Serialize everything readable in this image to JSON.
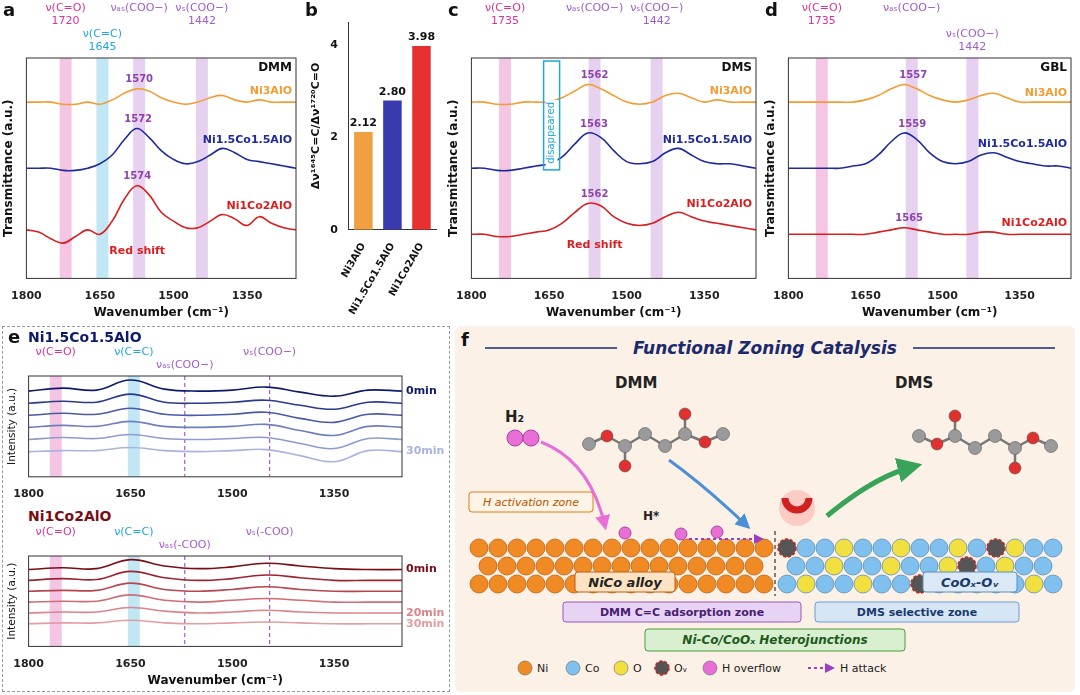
{
  "chart_data": [
    {
      "type": "line",
      "panel": "a",
      "title": "DMM",
      "x_label": "Wavenumber (cm⁻¹)",
      "y_label": "Transmittance (a.u.)",
      "x": [
        1800,
        1775,
        1750,
        1725,
        1700,
        1675,
        1650,
        1625,
        1600,
        1575,
        1550,
        1525,
        1500,
        1475,
        1450,
        1425,
        1400,
        1375,
        1350,
        1325,
        1300,
        1275,
        1250
      ],
      "xlim": [
        1800,
        1250
      ],
      "xticks": [
        1800,
        1650,
        1500,
        1350
      ],
      "ylim": [
        0,
        10
      ],
      "tick_labels": "x",
      "grid": false,
      "bands": [
        {
          "label": "ν(C=O)",
          "x": 1720,
          "x_label": "1720",
          "color": "#d6339b"
        },
        {
          "label": "ν(C=C)",
          "x": 1645,
          "x_label": "1645",
          "color": "#1fa8d8"
        },
        {
          "label": "νₐₛ(COO−)",
          "x": 1570,
          "color": "#a45cc9"
        },
        {
          "label": "νₛ(COO−)",
          "x": 1442,
          "x_label": "1442",
          "color": "#a45cc9"
        }
      ],
      "note": "Red shift",
      "series": [
        {
          "name": "Ni3AlO",
          "color": "#f39c34",
          "peak": 1570,
          "values": [
            8.0,
            8.0,
            8.0,
            7.9,
            7.9,
            8.0,
            7.9,
            8.1,
            8.4,
            8.6,
            8.5,
            8.2,
            8.0,
            7.9,
            8.0,
            8.2,
            8.3,
            8.1,
            8.0,
            8.1,
            8.0,
            8.0,
            8.0
          ]
        },
        {
          "name": "Ni1.5Co1.5AlO",
          "color": "#1f2a9c",
          "peak": 1572,
          "values": [
            5.0,
            5.0,
            5.0,
            4.9,
            4.9,
            5.0,
            5.2,
            5.6,
            6.3,
            6.8,
            6.4,
            5.8,
            5.4,
            5.2,
            5.3,
            5.6,
            5.9,
            5.7,
            5.4,
            5.3,
            5.2,
            5.1,
            5.0
          ]
        },
        {
          "name": "Ni1Co2AlO",
          "color": "#d81e1e",
          "peak": 1574,
          "values": [
            2.2,
            2.1,
            1.8,
            1.6,
            1.9,
            2.2,
            2.0,
            2.6,
            3.6,
            4.2,
            3.8,
            3.0,
            2.6,
            2.3,
            2.3,
            2.6,
            2.9,
            2.7,
            2.4,
            2.8,
            2.5,
            2.3,
            2.2
          ]
        }
      ]
    },
    {
      "type": "bar",
      "panel": "b",
      "y_label": "Δν¹⁶⁴⁵C=C/Δν¹⁷²⁰C=O",
      "categories": [
        "Ni3AlO",
        "Ni1.5Co1.5AlO",
        "Ni1Co2AlO"
      ],
      "values": [
        2.12,
        2.8,
        3.98
      ],
      "value_labels": [
        "2.12",
        "2.80",
        "3.98"
      ],
      "colors": [
        "#f0a040",
        "#3a3ab0",
        "#e83030"
      ],
      "ylim": [
        0,
        4.5
      ],
      "yticks": [
        0,
        2,
        4
      ],
      "data_labels": true,
      "grid": false
    },
    {
      "type": "line",
      "panel": "c",
      "title": "DMS",
      "x_label": "Wavenumber (cm⁻¹)",
      "y_label": "Transmittance (a.u.)",
      "x": [
        1800,
        1775,
        1750,
        1725,
        1700,
        1675,
        1650,
        1625,
        1600,
        1575,
        1550,
        1525,
        1500,
        1475,
        1450,
        1425,
        1400,
        1375,
        1350,
        1325,
        1300,
        1275,
        1250
      ],
      "xlim": [
        1800,
        1250
      ],
      "xticks": [
        1800,
        1650,
        1500,
        1350
      ],
      "ylim": [
        0,
        10
      ],
      "tick_labels": "x",
      "grid": false,
      "bands": [
        {
          "label": "ν(C=O)",
          "x": 1735,
          "x_label": "1735",
          "color": "#d6339b"
        },
        {
          "label": "νₐₛ(COO−)",
          "x": 1562,
          "color": "#a45cc9"
        },
        {
          "label": "νₛ(COO−)",
          "x": 1442,
          "x_label": "1442",
          "color": "#a45cc9"
        }
      ],
      "vertical_note": {
        "text": "disappeared",
        "x": 1645,
        "color": "#1fa8d8"
      },
      "note": "Red shift",
      "series": [
        {
          "name": "Ni3AlO",
          "color": "#f39c34",
          "peak": 1562,
          "values": [
            8.0,
            8.0,
            7.9,
            7.9,
            8.0,
            8.0,
            8.0,
            8.2,
            8.5,
            8.8,
            8.6,
            8.3,
            8.0,
            7.9,
            8.0,
            8.3,
            8.4,
            8.2,
            8.0,
            8.1,
            8.0,
            8.0,
            8.0
          ]
        },
        {
          "name": "Ni1.5Co1.5AlO",
          "color": "#1f2a9c",
          "peak": 1563,
          "values": [
            5.0,
            5.0,
            4.9,
            4.9,
            5.0,
            5.1,
            5.2,
            5.5,
            6.1,
            6.6,
            6.4,
            5.8,
            5.3,
            5.2,
            5.3,
            5.7,
            5.9,
            5.6,
            5.3,
            5.2,
            5.2,
            5.1,
            5.0
          ]
        },
        {
          "name": "Ni1Co2AlO",
          "color": "#d81e1e",
          "peak": 1562,
          "values": [
            2.0,
            2.0,
            1.9,
            1.9,
            2.0,
            2.1,
            2.2,
            2.5,
            3.0,
            3.4,
            3.3,
            2.8,
            2.5,
            2.4,
            2.5,
            2.8,
            3.0,
            2.8,
            2.6,
            2.5,
            2.4,
            2.3,
            2.2
          ]
        }
      ]
    },
    {
      "type": "line",
      "panel": "d",
      "title": "GBL",
      "x_label": "Wavenumber (cm⁻¹)",
      "y_label": "Transmittance (a.u.)",
      "x": [
        1800,
        1775,
        1750,
        1725,
        1700,
        1675,
        1650,
        1625,
        1600,
        1575,
        1550,
        1525,
        1500,
        1475,
        1450,
        1425,
        1400,
        1375,
        1350,
        1325,
        1300,
        1275,
        1250
      ],
      "xlim": [
        1800,
        1250
      ],
      "xticks": [
        1800,
        1650,
        1500,
        1350
      ],
      "ylim": [
        0,
        10
      ],
      "tick_labels": "x",
      "grid": false,
      "bands": [
        {
          "label": "ν(C=O)",
          "x": 1735,
          "x_label": "1735",
          "color": "#d6339b"
        },
        {
          "label": "νₐₛ(COO−)",
          "x": 1560,
          "color": "#a45cc9"
        },
        {
          "label": "νₛ(COO−)",
          "x": 1442,
          "x_label": "1442",
          "color": "#a45cc9"
        }
      ],
      "series": [
        {
          "name": "Ni3AlO",
          "color": "#f39c34",
          "peak": 1557,
          "values": [
            8.0,
            8.0,
            8.0,
            8.0,
            8.0,
            8.0,
            8.1,
            8.3,
            8.6,
            8.8,
            8.6,
            8.3,
            8.1,
            8.0,
            8.1,
            8.3,
            8.4,
            8.2,
            8.0,
            8.0,
            8.0,
            8.0,
            8.0
          ]
        },
        {
          "name": "Ni1.5Co1.5AlO",
          "color": "#1f2a9c",
          "peak": 1559,
          "values": [
            5.0,
            5.0,
            5.0,
            5.0,
            5.0,
            5.1,
            5.2,
            5.6,
            6.2,
            6.6,
            6.3,
            5.7,
            5.3,
            5.2,
            5.3,
            5.6,
            5.7,
            5.5,
            5.3,
            5.2,
            5.1,
            5.1,
            5.0
          ]
        },
        {
          "name": "Ni1Co2AlO",
          "color": "#d81e1e",
          "peak": 1565,
          "values": [
            2.0,
            2.0,
            2.0,
            2.0,
            2.0,
            2.0,
            2.0,
            2.1,
            2.2,
            2.3,
            2.2,
            2.1,
            2.0,
            2.0,
            2.0,
            2.1,
            2.1,
            2.0,
            2.0,
            2.0,
            2.0,
            2.0,
            2.0
          ]
        }
      ]
    },
    {
      "type": "line",
      "panel": "e",
      "title": "Ni1.5Co1.5AlO",
      "y_label": "Intensity (a.u.)",
      "x": [
        1800,
        1750,
        1700,
        1650,
        1600,
        1550,
        1500,
        1450,
        1400,
        1350,
        1300,
        1250
      ],
      "xlim": [
        1800,
        1250
      ],
      "xticks": [
        1800,
        1650,
        1500,
        1350
      ],
      "ylim": [
        0,
        10
      ],
      "tick_labels": "x",
      "grid": false,
      "bands": [
        {
          "label": "ν(C=O)",
          "x": 1760,
          "color": "#d6339b"
        },
        {
          "label": "ν(C=C)",
          "x": 1645,
          "color": "#1fa8d8"
        },
        {
          "label": "νₐₛ(COO−)",
          "x": 1570,
          "color": "#a45cc9",
          "line_style": "dashed"
        },
        {
          "label": "νₛ(COO−)",
          "x": 1445,
          "color": "#a45cc9",
          "line_style": "dashed"
        }
      ],
      "series": [
        {
          "name": "0min",
          "color": "#0d1a6b",
          "values": [
            8.5,
            8.8,
            8.6,
            9.6,
            8.7,
            8.5,
            8.6,
            8.9,
            8.4,
            8.0,
            8.6,
            8.5
          ]
        },
        {
          "color": "#2a3a8c",
          "values": [
            7.3,
            7.5,
            7.4,
            8.2,
            7.4,
            7.3,
            7.4,
            7.6,
            7.1,
            6.7,
            7.4,
            7.3
          ]
        },
        {
          "color": "#4a5aa6",
          "values": [
            6.1,
            6.3,
            6.2,
            6.8,
            6.2,
            6.1,
            6.2,
            6.4,
            5.8,
            5.4,
            6.2,
            6.1
          ]
        },
        {
          "color": "#6f7ec0",
          "values": [
            4.9,
            5.1,
            5.0,
            5.5,
            5.0,
            4.9,
            5.0,
            5.2,
            4.6,
            4.1,
            5.0,
            4.9
          ]
        },
        {
          "color": "#8e9bd0",
          "values": [
            3.7,
            3.9,
            3.8,
            4.2,
            3.8,
            3.7,
            3.8,
            3.9,
            3.3,
            2.8,
            3.8,
            3.7
          ]
        },
        {
          "name": "30min",
          "color": "#a9b3dc",
          "values": [
            2.5,
            2.6,
            2.6,
            2.9,
            2.6,
            2.5,
            2.6,
            2.7,
            2.1,
            1.5,
            2.6,
            2.5
          ]
        }
      ]
    },
    {
      "type": "line",
      "title": "Ni1Co2AlO",
      "x_label": "Wavenumber (cm⁻¹)",
      "y_label": "Intensity (a.u.)",
      "x": [
        1800,
        1750,
        1700,
        1650,
        1600,
        1550,
        1500,
        1450,
        1400,
        1350,
        1300,
        1250
      ],
      "xlim": [
        1800,
        1250
      ],
      "xticks": [
        1800,
        1650,
        1500,
        1350
      ],
      "ylim": [
        0,
        10
      ],
      "tick_labels": "x",
      "grid": false,
      "bands": [
        {
          "label": "ν(C=O)",
          "x": 1760,
          "color": "#d6339b"
        },
        {
          "label": "ν(C=C)",
          "x": 1645,
          "color": "#1fa8d8"
        },
        {
          "label": "νₐₛ(-COO)",
          "x": 1570,
          "color": "#a45cc9",
          "line_style": "dashed"
        },
        {
          "label": "νₛ(-COO)",
          "x": 1445,
          "color": "#a45cc9",
          "line_style": "dashed"
        }
      ],
      "series": [
        {
          "name": "0min",
          "color": "#7a0c14",
          "values": [
            8.5,
            8.7,
            8.6,
            9.6,
            8.9,
            8.6,
            8.8,
            9.2,
            8.9,
            8.6,
            8.5,
            8.5
          ]
        },
        {
          "color": "#9b2530",
          "values": [
            7.3,
            7.5,
            7.4,
            8.3,
            7.6,
            7.3,
            7.5,
            7.9,
            7.6,
            7.3,
            7.3,
            7.3
          ]
        },
        {
          "color": "#b8454f",
          "values": [
            6.1,
            6.2,
            6.2,
            7.0,
            6.3,
            6.1,
            6.3,
            6.6,
            6.3,
            6.1,
            6.1,
            6.1
          ]
        },
        {
          "color": "#cf6d74",
          "values": [
            4.9,
            5.0,
            5.0,
            5.7,
            5.1,
            4.9,
            5.1,
            5.3,
            5.1,
            4.9,
            4.9,
            4.9
          ]
        },
        {
          "name": "20min",
          "color": "#d98589",
          "values": [
            3.7,
            3.8,
            3.8,
            4.3,
            3.9,
            3.7,
            3.8,
            4.0,
            3.8,
            3.7,
            3.7,
            3.7
          ]
        },
        {
          "name": "30min",
          "color": "#e39da0",
          "values": [
            2.5,
            2.6,
            2.6,
            2.9,
            2.6,
            2.5,
            2.6,
            2.7,
            2.6,
            2.5,
            2.5,
            2.5
          ]
        }
      ]
    }
  ],
  "diagram": {
    "panel": "f",
    "title": "Functional Zoning Catalysis",
    "reactant": "DMM",
    "product": "DMS",
    "gas": "H₂",
    "adsorbed": "H*",
    "activation_zone": "H activation zone",
    "materials": [
      "NiCo alloy",
      "CoOₓ-Oᵥ"
    ],
    "regions": [
      "DMM C=C adsorption zone",
      "DMS selective zone"
    ],
    "interface": "Ni-Co/CoOₓ Heterojunctions",
    "key_items": [
      {
        "label": "Ni",
        "color": "#f08a24",
        "marker": "circle"
      },
      {
        "label": "Co",
        "color": "#7fc0ee",
        "marker": "circle"
      },
      {
        "label": "O",
        "color": "#f2e040",
        "marker": "circle"
      },
      {
        "label": "Oᵥ",
        "color": "#555555",
        "marker": "vacancy"
      },
      {
        "label": "H overflow",
        "color": "#e86fd6",
        "marker": "circle"
      },
      {
        "label": "H attack",
        "color": "#9b3fc0",
        "marker": "arrow"
      }
    ]
  }
}
